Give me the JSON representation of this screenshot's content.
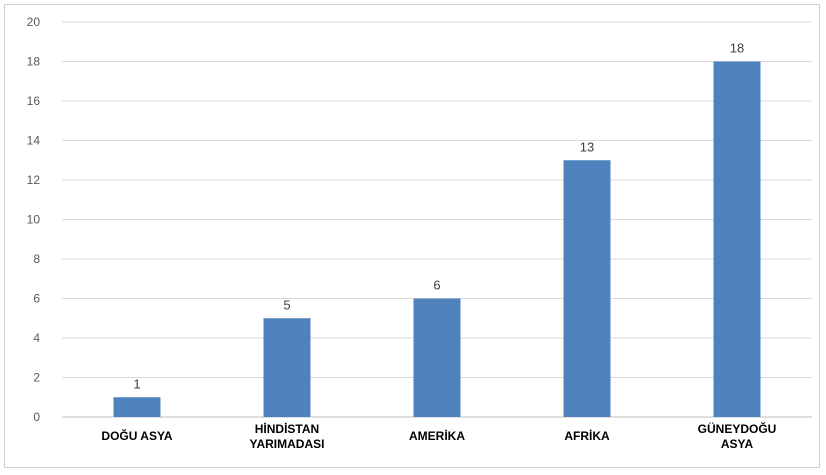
{
  "chart_data": {
    "type": "bar",
    "categories": [
      [
        "DOĞU ASYA"
      ],
      [
        "HİNDİSTAN",
        "YARIMADASI"
      ],
      [
        "AMERİKA"
      ],
      [
        "AFRİKA"
      ],
      [
        "GÜNEYDOĞU",
        "ASYA"
      ]
    ],
    "values": [
      1,
      5,
      6,
      13,
      18
    ],
    "ylim": [
      0,
      20
    ],
    "yticks": [
      0,
      2,
      4,
      6,
      8,
      10,
      12,
      14,
      16,
      18,
      20
    ],
    "grid": true,
    "bar_color": "#4f81bd",
    "title": "",
    "xlabel": "",
    "ylabel": ""
  }
}
